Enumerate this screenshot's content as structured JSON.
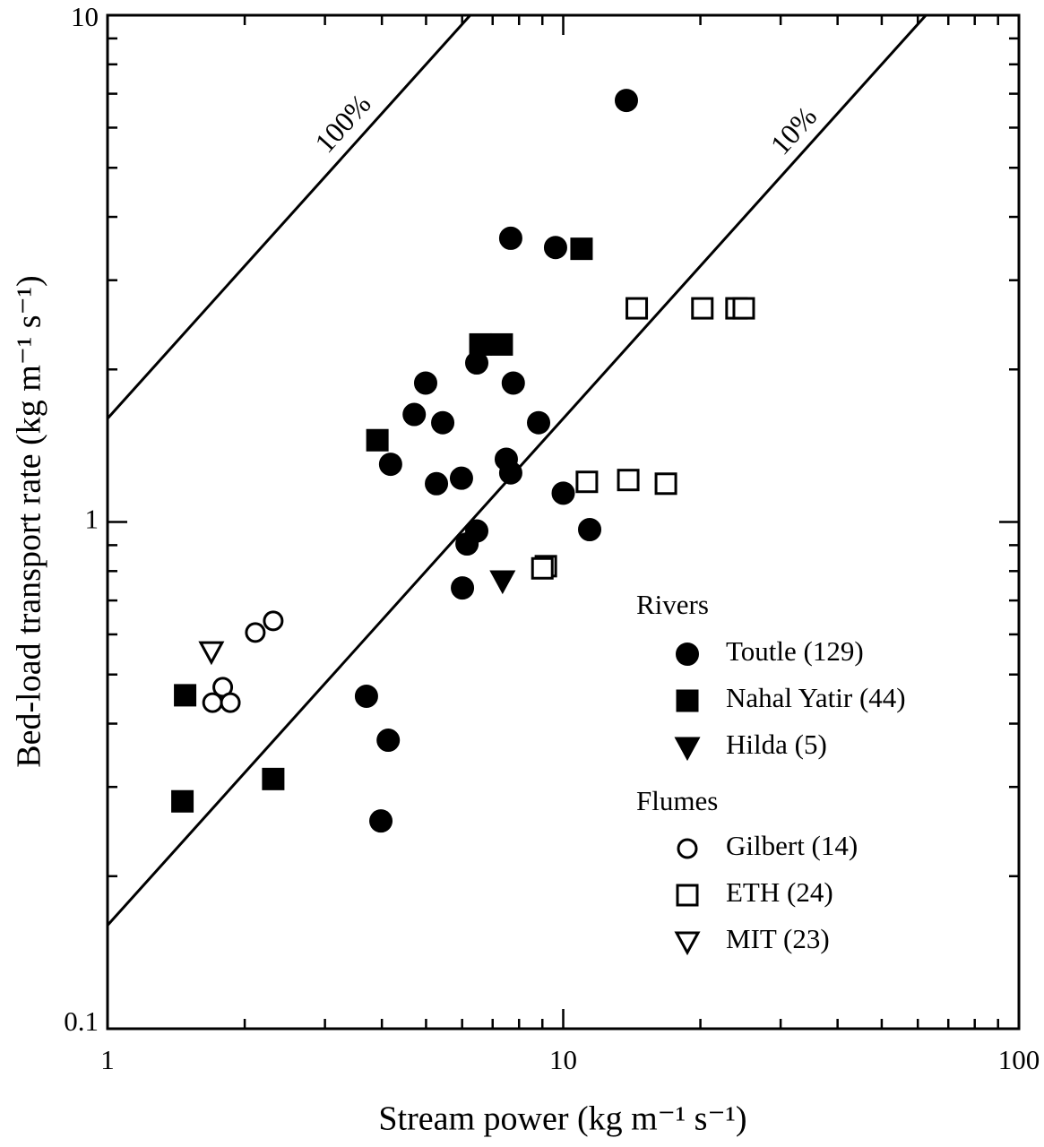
{
  "chart_data": {
    "type": "scatter",
    "xlabel": "Stream power (kg m⁻¹ s⁻¹)",
    "ylabel": "Bed-load transport rate (kg m⁻¹ s⁻¹)",
    "xscale": "log",
    "yscale": "log",
    "xlim": [
      1,
      100
    ],
    "ylim": [
      0.1,
      10
    ],
    "xticks": [
      1,
      10,
      100
    ],
    "yticks": [
      0.1,
      1,
      10
    ],
    "xticks_minor": [
      2,
      3,
      4,
      5,
      6,
      7,
      8,
      9,
      20,
      30,
      40,
      50,
      60,
      70,
      80,
      90
    ],
    "yticks_minor": [
      0.2,
      0.3,
      0.4,
      0.5,
      0.6,
      0.7,
      0.8,
      0.9,
      2,
      3,
      4,
      5,
      6,
      7,
      8,
      9
    ],
    "lines": [
      {
        "label": "100%",
        "x": [
          1,
          6.25
        ],
        "values": [
          1.6,
          10
        ]
      },
      {
        "label": "10%",
        "x": [
          1,
          62.5
        ],
        "values": [
          0.16,
          10
        ]
      }
    ],
    "legend_titles": [
      "Rivers",
      "Flumes"
    ],
    "series": [
      {
        "name": "Toutle (129)",
        "marker": "circle",
        "filled": true,
        "color": "#000",
        "x": [
          13.76,
          7.67,
          9.62,
          6.46,
          4.99,
          7.77,
          4.71,
          5.44,
          8.83,
          4.18,
          7.5,
          7.67,
          5.27,
          5.98,
          10.0,
          11.43,
          6.46,
          6.15,
          6.01,
          3.7,
          4.13,
          3.98
        ],
        "values": [
          6.79,
          3.63,
          3.48,
          2.06,
          1.88,
          1.88,
          1.63,
          1.57,
          1.57,
          1.3,
          1.33,
          1.25,
          1.19,
          1.22,
          1.14,
          0.966,
          0.96,
          0.905,
          0.741,
          0.453,
          0.371,
          0.257
        ]
      },
      {
        "name": "Nahal Yatir (44)",
        "marker": "square",
        "filled": true,
        "color": "#000",
        "x": [
          10.97,
          6.58,
          7.33,
          3.91,
          1.48,
          2.31,
          1.46
        ],
        "values": [
          3.46,
          2.24,
          2.24,
          1.45,
          0.455,
          0.311,
          0.281
        ]
      },
      {
        "name": "Hilda (5)",
        "marker": "triangle-down",
        "filled": true,
        "color": "#000",
        "x": [
          7.36
        ],
        "values": [
          0.766
        ]
      },
      {
        "name": "Gilbert (14)",
        "marker": "circle",
        "filled": false,
        "color": "#000",
        "x": [
          2.11,
          2.31,
          1.79,
          1.7,
          1.86
        ],
        "values": [
          0.605,
          0.638,
          0.472,
          0.44,
          0.44
        ]
      },
      {
        "name": "ETH (24)",
        "marker": "square",
        "filled": false,
        "color": "#000",
        "x": [
          14.5,
          20.2,
          24.0,
          24.9,
          11.27,
          13.89,
          16.8,
          9.16,
          9.0
        ],
        "values": [
          2.64,
          2.64,
          2.64,
          2.64,
          1.2,
          1.21,
          1.19,
          0.818,
          0.81
        ]
      },
      {
        "name": "MIT (23)",
        "marker": "triangle-down",
        "filled": false,
        "color": "#000",
        "x": [
          1.69
        ],
        "values": [
          0.555
        ]
      }
    ]
  }
}
